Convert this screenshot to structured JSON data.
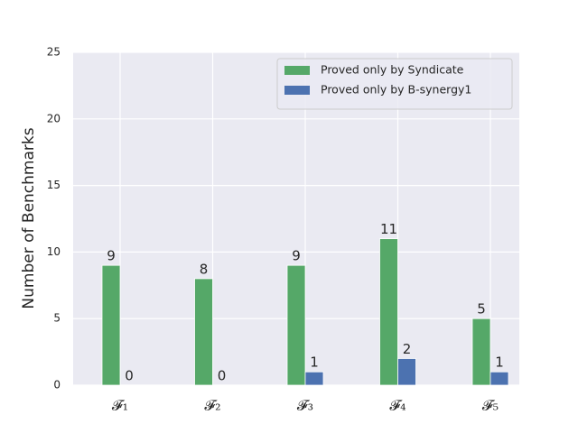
{
  "chart_data": {
    "type": "bar",
    "categories": [
      "𝓕₁",
      "𝓕₂",
      "𝓕₃",
      "𝓕₄",
      "𝓕₅"
    ],
    "series": [
      {
        "name": "Proved only by Syndicate",
        "color": "#55a868",
        "values": [
          9,
          8,
          9,
          11,
          5
        ]
      },
      {
        "name": "Proved only by B-synergy1",
        "color": "#4c72b0",
        "values": [
          0,
          0,
          1,
          2,
          1
        ]
      }
    ],
    "y_label": "Number of Benchmarks",
    "ylim": [
      0,
      25
    ],
    "yticks": [
      0,
      5,
      10,
      15,
      20,
      25
    ],
    "grid": true,
    "legend": "upper right"
  }
}
